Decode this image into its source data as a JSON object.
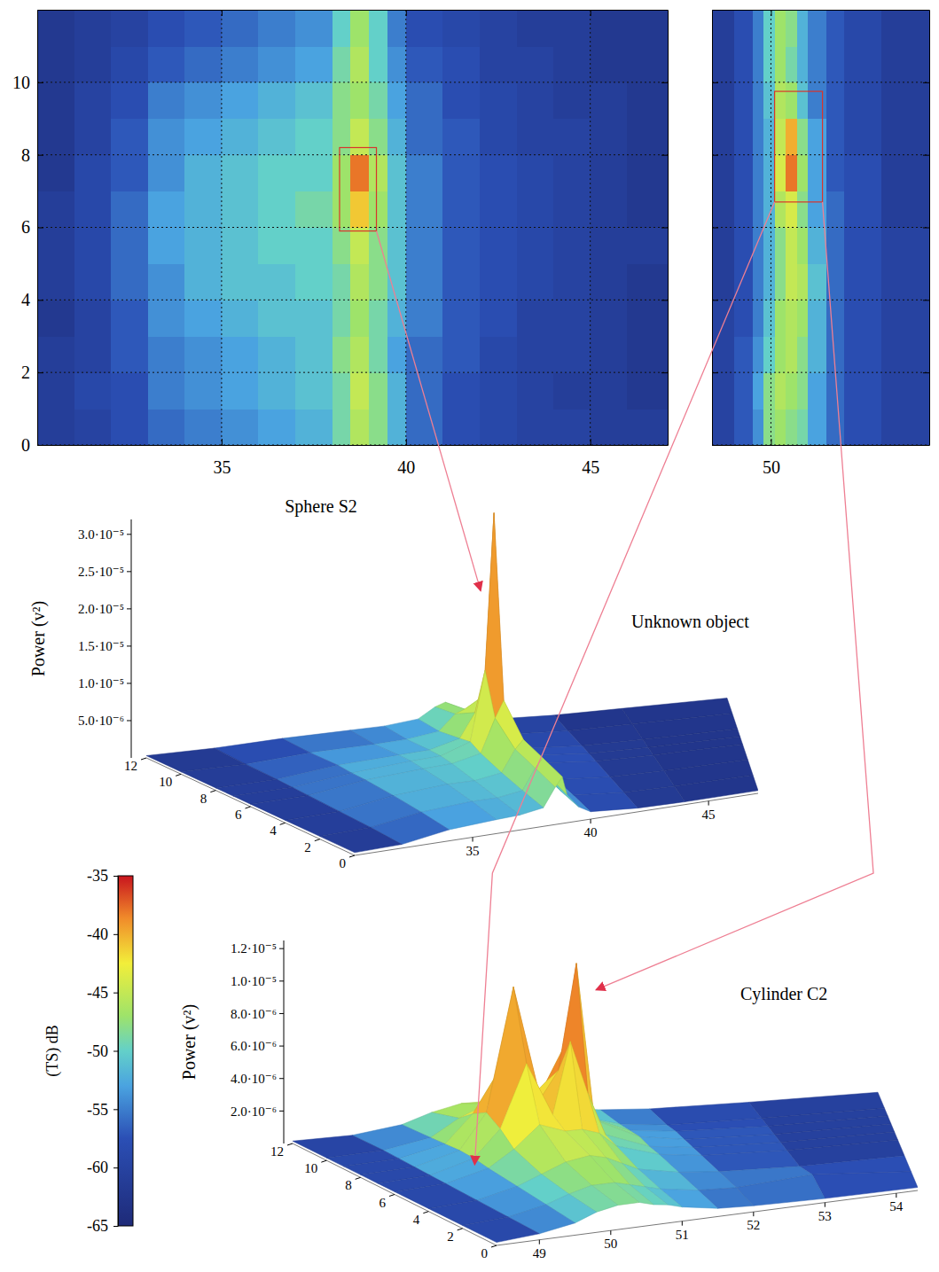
{
  "chart_data": [
    {
      "type": "heatmap",
      "x_edges": [
        30,
        31,
        32,
        33,
        34,
        35,
        36,
        37,
        38,
        38.5,
        39,
        39.5,
        40,
        41,
        42,
        43,
        44,
        45,
        46,
        47.1
      ],
      "y_edges": [
        0,
        1,
        2,
        3,
        4,
        5,
        6,
        7,
        8,
        9,
        10,
        11,
        12
      ],
      "values": [
        [
          -61,
          -60,
          -58,
          -56,
          -55,
          -54,
          -53,
          -52,
          -49,
          -46,
          -48,
          -52,
          -56,
          -58,
          -59,
          -60,
          -60,
          -61,
          -61
        ],
        [
          -61,
          -59,
          -58,
          -55,
          -54,
          -53,
          -52,
          -51,
          -49,
          -45,
          -48,
          -52,
          -56,
          -58,
          -59,
          -60,
          -61,
          -61,
          -62
        ],
        [
          -61,
          -60,
          -57,
          -55,
          -54,
          -53,
          -52,
          -51,
          -48,
          -46,
          -49,
          -53,
          -56,
          -57,
          -59,
          -60,
          -60,
          -61,
          -62
        ],
        [
          -62,
          -60,
          -57,
          -54,
          -53,
          -52,
          -51,
          -51,
          -49,
          -47,
          -49,
          -52,
          -55,
          -57,
          -58,
          -60,
          -60,
          -61,
          -62
        ],
        [
          -61,
          -59,
          -56,
          -54,
          -52,
          -51,
          -51,
          -50,
          -49,
          -46,
          -48,
          -51,
          -55,
          -57,
          -58,
          -59,
          -60,
          -61,
          -62
        ],
        [
          -61,
          -59,
          -56,
          -53,
          -52,
          -51,
          -50,
          -50,
          -48,
          -45,
          -48,
          -51,
          -55,
          -57,
          -58,
          -59,
          -60,
          -61,
          -61
        ],
        [
          -61,
          -59,
          -56,
          -53,
          -52,
          -51,
          -50,
          -49,
          -47,
          -41,
          -47,
          -51,
          -55,
          -57,
          -58,
          -59,
          -60,
          -61,
          -62
        ],
        [
          -62,
          -59,
          -57,
          -54,
          -52,
          -51,
          -50,
          -50,
          -47,
          -38,
          -46,
          -51,
          -55,
          -57,
          -58,
          -59,
          -60,
          -61,
          -62
        ],
        [
          -62,
          -60,
          -57,
          -54,
          -53,
          -52,
          -51,
          -50,
          -48,
          -45,
          -48,
          -52,
          -56,
          -57,
          -59,
          -60,
          -60,
          -61,
          -62
        ],
        [
          -62,
          -60,
          -58,
          -55,
          -54,
          -53,
          -52,
          -51,
          -48,
          -47,
          -49,
          -53,
          -56,
          -58,
          -59,
          -60,
          -61,
          -61,
          -62
        ],
        [
          -62,
          -61,
          -59,
          -57,
          -56,
          -55,
          -54,
          -53,
          -49,
          -46,
          -50,
          -54,
          -57,
          -58,
          -60,
          -60,
          -61,
          -62,
          -62
        ],
        [
          -62,
          -61,
          -60,
          -58,
          -57,
          -56,
          -55,
          -54,
          -50,
          -47,
          -50,
          -55,
          -58,
          -59,
          -60,
          -61,
          -61,
          -62,
          -62
        ]
      ],
      "xlim": [
        30,
        47.1
      ],
      "ylim": [
        0,
        12
      ],
      "xticks": [
        35,
        40,
        45
      ],
      "yticks": [
        0,
        2,
        4,
        6,
        8,
        10
      ],
      "grid": true,
      "highlight": {
        "x": [
          38.2,
          39.2
        ],
        "y": [
          5.9,
          8.2
        ]
      }
    },
    {
      "type": "heatmap",
      "x_edges": [
        48.4,
        49,
        49.5,
        49.8,
        50.1,
        50.4,
        50.7,
        51,
        51.5,
        52,
        53,
        54.3
      ],
      "y_edges": [
        0,
        1,
        2,
        3,
        4,
        5,
        6,
        7,
        8,
        9,
        10,
        11,
        12
      ],
      "values": [
        [
          -60,
          -57,
          -54,
          -48,
          -47,
          -48,
          -49,
          -53,
          -56,
          -58,
          -60
        ],
        [
          -60,
          -57,
          -53,
          -48,
          -46,
          -47,
          -48,
          -53,
          -56,
          -58,
          -60
        ],
        [
          -60,
          -57,
          -54,
          -50,
          -47,
          -46,
          -48,
          -52,
          -56,
          -58,
          -60
        ],
        [
          -60,
          -58,
          -55,
          -51,
          -47,
          -46,
          -47,
          -52,
          -56,
          -58,
          -60
        ],
        [
          -61,
          -58,
          -55,
          -52,
          -48,
          -45,
          -46,
          -51,
          -56,
          -58,
          -60
        ],
        [
          -61,
          -58,
          -55,
          -52,
          -48,
          -45,
          -47,
          -52,
          -56,
          -58,
          -60
        ],
        [
          -61,
          -58,
          -55,
          -52,
          -46,
          -44,
          -48,
          -53,
          -56,
          -58,
          -61
        ],
        [
          -61,
          -58,
          -55,
          -52,
          -44,
          -38,
          -47,
          -53,
          -57,
          -58,
          -61
        ],
        [
          -61,
          -58,
          -55,
          -52,
          -45,
          -40,
          -48,
          -53,
          -57,
          -59,
          -61
        ],
        [
          -61,
          -58,
          -55,
          -51,
          -46,
          -47,
          -51,
          -55,
          -57,
          -59,
          -61
        ],
        [
          -61,
          -58,
          -55,
          -50,
          -47,
          -49,
          -52,
          -55,
          -57,
          -59,
          -61
        ],
        [
          -61,
          -58,
          -55,
          -50,
          -47,
          -48,
          -52,
          -55,
          -57,
          -59,
          -61
        ]
      ],
      "xlim": [
        48.4,
        54.3
      ],
      "ylim": [
        0,
        12
      ],
      "xticks": [
        50
      ],
      "yticks": [
        0,
        2,
        4,
        6,
        8,
        10
      ],
      "tick_labels": "x",
      "grid": true,
      "highlight": {
        "x": [
          50.1,
          51.4
        ],
        "y": [
          6.7,
          9.75
        ]
      }
    },
    {
      "type": "colorbar",
      "ylim": [
        -65,
        -35
      ],
      "yticks": [
        -35,
        -40,
        -45,
        -50,
        -55,
        -60,
        -65
      ],
      "ylabel": "(TS) dB"
    },
    {
      "type": "surface",
      "title": "Sphere S2",
      "x": [
        30,
        32,
        34,
        36,
        37,
        38,
        38.5,
        38.8,
        39,
        39.5,
        40,
        42,
        44,
        47.1
      ],
      "y": [
        0,
        2,
        4,
        6,
        7,
        8,
        10,
        12
      ],
      "z": [
        [
          3e-07,
          4e-07,
          1.2e-06,
          1.5e-06,
          1.6e-06,
          2e-06,
          4e-06,
          5e-06,
          3e-06,
          1.5e-06,
          8e-07,
          4e-07,
          3e-07,
          3e-07
        ],
        [
          3e-07,
          5e-07,
          1.4e-06,
          1.8e-06,
          1.8e-06,
          2.2e-06,
          4.5e-06,
          5.5e-06,
          3.5e-06,
          1.6e-06,
          9e-07,
          4e-07,
          3e-07,
          3e-07
        ],
        [
          3e-07,
          5e-07,
          1.5e-06,
          2e-06,
          2e-06,
          2.5e-06,
          5e-06,
          6e-06,
          4e-06,
          1.8e-06,
          9e-07,
          4e-07,
          3e-07,
          3e-07
        ],
        [
          3e-07,
          5e-07,
          1.5e-06,
          2e-06,
          2.2e-06,
          3e-06,
          7e-06,
          9e-06,
          6e-06,
          2e-06,
          1e-06,
          4e-07,
          3e-07,
          3e-07
        ],
        [
          3e-07,
          5e-07,
          1.4e-06,
          2e-06,
          2.2e-06,
          3.5e-06,
          1.2e-05,
          3.1e-05,
          9e-06,
          2.2e-06,
          1e-06,
          4e-07,
          3e-07,
          3e-07
        ],
        [
          3e-07,
          5e-07,
          1.4e-06,
          1.8e-06,
          2e-06,
          3e-06,
          6e-06,
          8e-06,
          5e-06,
          2e-06,
          9e-07,
          4e-07,
          3e-07,
          3e-07
        ],
        [
          3e-07,
          4e-07,
          1e-06,
          1.2e-06,
          1.4e-06,
          2e-06,
          4e-06,
          4.5e-06,
          3e-06,
          1.4e-06,
          7e-07,
          3e-07,
          3e-07,
          3e-07
        ],
        [
          3e-07,
          4e-07,
          8e-07,
          1e-06,
          1.1e-06,
          1.6e-06,
          3e-06,
          3.5e-06,
          2.5e-06,
          1.2e-06,
          6e-07,
          3e-07,
          3e-07,
          3e-07
        ]
      ],
      "xlim": [
        30,
        47.1
      ],
      "ylim": [
        0,
        12
      ],
      "zlim": [
        0,
        3.2e-05
      ],
      "xticks": [
        35,
        40,
        45
      ],
      "yticks": [
        0,
        2,
        4,
        6,
        8,
        10,
        12
      ],
      "zticks": [
        {
          "value": 5e-06,
          "label": "5.0·10⁻⁶"
        },
        {
          "value": 1e-05,
          "label": "1.0·10⁻⁵"
        },
        {
          "value": 1.5e-05,
          "label": "1.5·10⁻⁵"
        },
        {
          "value": 2e-05,
          "label": "2.0·10⁻⁵"
        },
        {
          "value": 2.5e-05,
          "label": "2.5·10⁻⁵"
        },
        {
          "value": 3e-05,
          "label": "3.0·10⁻⁵"
        }
      ],
      "zlabel": "Power (v²)"
    },
    {
      "type": "surface",
      "title": "Cylinder C2",
      "x": [
        48.4,
        49,
        49.5,
        49.8,
        50.1,
        50.4,
        50.6,
        50.8,
        51,
        51.5,
        52,
        53,
        54.3
      ],
      "y": [
        0,
        2,
        4,
        6,
        7,
        8,
        9,
        10,
        12
      ],
      "z": [
        [
          1.5e-07,
          3e-07,
          6e-07,
          1e-06,
          1.2e-06,
          1.2e-06,
          1e-06,
          9e-07,
          7e-07,
          4e-07,
          3e-07,
          2e-07,
          1.5e-07
        ],
        [
          1.5e-07,
          3e-07,
          7e-07,
          1.1e-06,
          1.4e-06,
          1.4e-06,
          1.2e-06,
          1e-06,
          8e-07,
          5e-07,
          4e-07,
          6e-07,
          1.5e-07
        ],
        [
          1.5e-07,
          3e-07,
          8e-07,
          1.3e-06,
          1.8e-06,
          2e-06,
          1.8e-06,
          1.4e-06,
          1e-06,
          6e-07,
          4e-07,
          2e-07,
          1.5e-07
        ],
        [
          1.5e-07,
          3e-07,
          9e-07,
          1.8e-06,
          3e-06,
          2.5e-06,
          2.5e-06,
          2.2e-06,
          1.4e-06,
          7e-07,
          4e-07,
          2e-07,
          1.5e-07
        ],
        [
          1.5e-07,
          3e-07,
          1e-06,
          2.5e-06,
          6e-06,
          3e-06,
          7e-06,
          4e-06,
          1.6e-06,
          7e-07,
          4e-07,
          2e-07,
          1.5e-07
        ],
        [
          1.5e-07,
          3e-07,
          1e-06,
          3e-06,
          1e-05,
          3.5e-06,
          5e-06,
          1.1e-05,
          2e-06,
          8e-07,
          4e-07,
          2e-07,
          1.5e-07
        ],
        [
          1.5e-07,
          3e-07,
          9e-07,
          2.5e-06,
          5e-06,
          3e-06,
          4e-06,
          6e-06,
          1.8e-06,
          7e-07,
          4e-07,
          2e-07,
          1.5e-07
        ],
        [
          1.5e-07,
          3e-07,
          8e-07,
          1.8e-06,
          2.5e-06,
          2.5e-06,
          2.2e-06,
          2e-06,
          1.4e-06,
          6e-07,
          3e-07,
          2e-07,
          1.5e-07
        ],
        [
          1.5e-07,
          2e-07,
          6e-07,
          1.2e-06,
          1.6e-06,
          1.6e-06,
          1.4e-06,
          1.2e-06,
          9e-07,
          5e-07,
          3e-07,
          2e-07,
          1.5e-07
        ]
      ],
      "xlim": [
        48.4,
        54.3
      ],
      "ylim": [
        0,
        12
      ],
      "zlim": [
        0,
        1.25e-05
      ],
      "xticks": [
        49,
        50,
        51,
        52,
        53,
        54
      ],
      "yticks": [
        0,
        2,
        4,
        6,
        8,
        10,
        12
      ],
      "zticks": [
        {
          "value": 2e-06,
          "label": "2.0·10⁻⁶"
        },
        {
          "value": 4e-06,
          "label": "4.0·10⁻⁶"
        },
        {
          "value": 6e-06,
          "label": "6.0·10⁻⁶"
        },
        {
          "value": 8e-06,
          "label": "8.0·10⁻⁶"
        },
        {
          "value": 1e-05,
          "label": "1.0·10⁻⁵"
        },
        {
          "value": 1.2e-05,
          "label": "1.2·10⁻⁵"
        }
      ],
      "zlabel": "Power (v²)",
      "annotations": [
        {
          "text": "Unknown object"
        }
      ]
    }
  ]
}
